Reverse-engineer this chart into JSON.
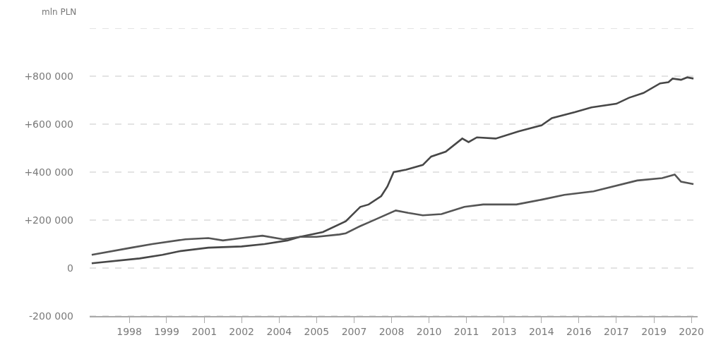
{
  "chart_data": {
    "type": "line",
    "ylabel": "mln PLN",
    "xlim": [
      "1996-06",
      "2020-10"
    ],
    "xticks": [
      {
        "value": "1998-01",
        "label": "1998"
      },
      {
        "value": "1999-07",
        "label": "1999"
      },
      {
        "value": "2001-01",
        "label": "2001"
      },
      {
        "value": "2002-07",
        "label": "2002"
      },
      {
        "value": "2004-01",
        "label": "2004"
      },
      {
        "value": "2005-07",
        "label": "2005"
      },
      {
        "value": "2007-01",
        "label": "2007"
      },
      {
        "value": "2008-07",
        "label": "2008"
      },
      {
        "value": "2010-01",
        "label": "2010"
      },
      {
        "value": "2011-07",
        "label": "2011"
      },
      {
        "value": "2013-01",
        "label": "2013"
      },
      {
        "value": "2014-07",
        "label": "2014"
      },
      {
        "value": "2016-01",
        "label": "2016"
      },
      {
        "value": "2017-07",
        "label": "2017"
      },
      {
        "value": "2019-01",
        "label": "2019"
      },
      {
        "value": "2020-07",
        "label": "2020"
      }
    ],
    "ylim": [
      -200000,
      1000000
    ],
    "yticks": [
      {
        "value": -200000,
        "label": "-200 000"
      },
      0,
      {
        "value": 200000,
        "label": "+200 000"
      },
      {
        "value": 400000,
        "label": "+400 000"
      },
      {
        "value": 600000,
        "label": "+600 000"
      },
      {
        "value": 800000,
        "label": "+800 000"
      },
      {
        "value": 1000000,
        "label": null
      }
    ],
    "grid": "y",
    "line_style": "solid",
    "marker": "none",
    "series": [
      {
        "color": "#474747",
        "x": [
          "1996-07",
          "1998-06",
          "1999-05",
          "2000-01",
          "2001-03",
          "2002-07",
          "2003-06",
          "2004-05",
          "2004-11",
          "2005-10",
          "2006-09",
          "2007-04",
          "2007-08",
          "2008-02",
          "2008-05",
          "2008-08",
          "2009-02",
          "2009-10",
          "2010-02",
          "2010-09",
          "2011-05",
          "2011-08",
          "2011-12",
          "2012-09",
          "2013-08",
          "2014-07",
          "2014-12",
          "2015-11",
          "2016-07",
          "2017-07",
          "2018-01",
          "2018-08",
          "2019-04",
          "2019-08",
          "2019-10",
          "2020-02",
          "2020-05",
          "2020-08"
        ],
        "values": [
          20000,
          40000,
          55000,
          70000,
          85000,
          90000,
          100000,
          115000,
          130000,
          150000,
          195000,
          255000,
          265000,
          300000,
          340000,
          400000,
          410000,
          430000,
          465000,
          485000,
          540000,
          525000,
          545000,
          540000,
          570000,
          595000,
          625000,
          650000,
          670000,
          685000,
          710000,
          730000,
          770000,
          775000,
          790000,
          785000,
          795000,
          790000
        ]
      },
      {
        "color": "#555555",
        "x": [
          "1996-07",
          "1998-02",
          "1998-12",
          "2000-04",
          "2001-03",
          "2001-10",
          "2002-07",
          "2003-05",
          "2004-03",
          "2004-11",
          "2005-07",
          "2006-06",
          "2006-09",
          "2007-04",
          "2007-08",
          "2008-09",
          "2009-03",
          "2009-10",
          "2010-07",
          "2011-06",
          "2012-03",
          "2013-07",
          "2014-07",
          "2015-06",
          "2016-08",
          "2018-05",
          "2019-05",
          "2019-11",
          "2020-02",
          "2020-08"
        ],
        "values": [
          55000,
          85000,
          100000,
          120000,
          125000,
          115000,
          125000,
          135000,
          120000,
          130000,
          130000,
          140000,
          145000,
          175000,
          190000,
          240000,
          230000,
          220000,
          225000,
          255000,
          265000,
          265000,
          285000,
          305000,
          320000,
          365000,
          375000,
          390000,
          360000,
          350000
        ]
      }
    ]
  }
}
